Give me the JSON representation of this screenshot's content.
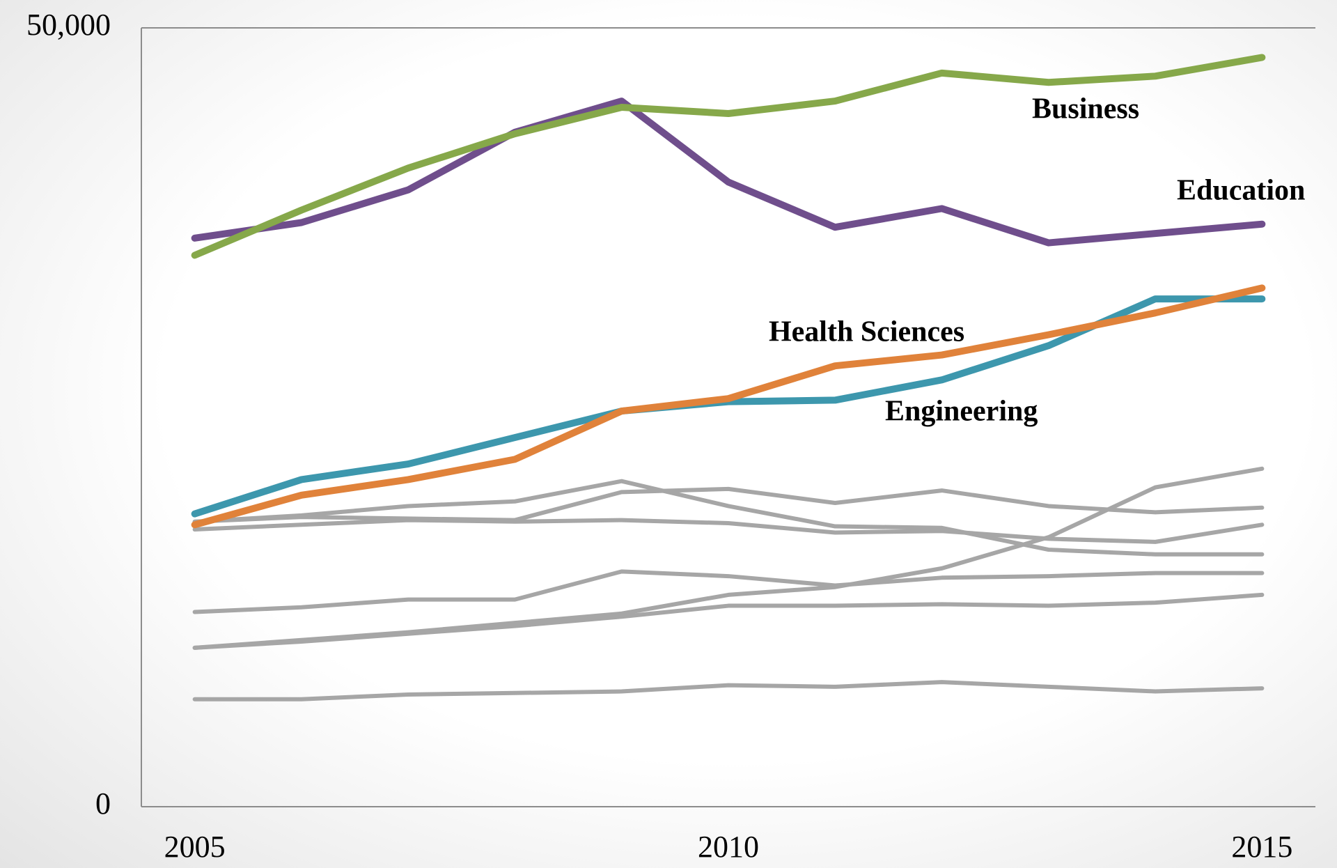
{
  "chart_data": {
    "type": "line",
    "x": [
      2005,
      2006,
      2007,
      2008,
      2009,
      2010,
      2011,
      2012,
      2013,
      2014,
      2015
    ],
    "xlim": [
      2004.5,
      2015.5
    ],
    "xticks": [
      2005,
      2010,
      2015
    ],
    "ylim": [
      0,
      50000
    ],
    "yticks": [
      0,
      {
        "value": 50000,
        "label": "50,000"
      }
    ],
    "series": [
      {
        "color": "#a6a6a6",
        "values": [
          18300,
          18700,
          19300,
          19600,
          20900,
          19300,
          18000,
          17900,
          16500,
          16200,
          16200
        ]
      },
      {
        "color": "#a6a6a6",
        "values": [
          18300,
          18600,
          18500,
          18400,
          20200,
          20400,
          19500,
          20300,
          19300,
          18900,
          19200
        ]
      },
      {
        "color": "#a6a6a6",
        "values": [
          17800,
          18100,
          18400,
          18300,
          18400,
          18200,
          17600,
          17700,
          17200,
          17000,
          18100
        ]
      },
      {
        "color": "#a6a6a6",
        "values": [
          10200,
          10700,
          11200,
          11800,
          12400,
          13600,
          14100,
          15300,
          17300,
          20500,
          21700
        ]
      },
      {
        "color": "#a6a6a6",
        "values": [
          10200,
          10600,
          11100,
          11600,
          12200,
          12900,
          12900,
          13000,
          12900,
          13100,
          13600
        ]
      },
      {
        "color": "#a6a6a6",
        "values": [
          12500,
          12800,
          13300,
          13300,
          15100,
          14800,
          14200,
          14700,
          14800,
          15000,
          15000
        ]
      },
      {
        "color": "#a6a6a6",
        "values": [
          6900,
          6900,
          7200,
          7300,
          7400,
          7800,
          7700,
          8000,
          7700,
          7400,
          7600
        ]
      },
      {
        "name": "Engineering",
        "color": "#3d97ad",
        "values": [
          18800,
          21000,
          22000,
          23700,
          25400,
          26000,
          26100,
          27400,
          29600,
          32600,
          32600
        ]
      },
      {
        "name": "Health Sciences",
        "color": "#e0823a",
        "values": [
          18100,
          20000,
          21000,
          22300,
          25400,
          26200,
          28300,
          29000,
          30300,
          31700,
          33300
        ]
      },
      {
        "name": "Education",
        "color": "#6f4e8c",
        "values": [
          36500,
          37500,
          39600,
          43300,
          45300,
          40100,
          37200,
          38400,
          36200,
          36800,
          37400
        ]
      },
      {
        "name": "Business",
        "color": "#86a84a",
        "values": [
          35400,
          38300,
          41000,
          43200,
          44900,
          44500,
          45300,
          47100,
          46500,
          46900,
          48100
        ]
      }
    ]
  }
}
